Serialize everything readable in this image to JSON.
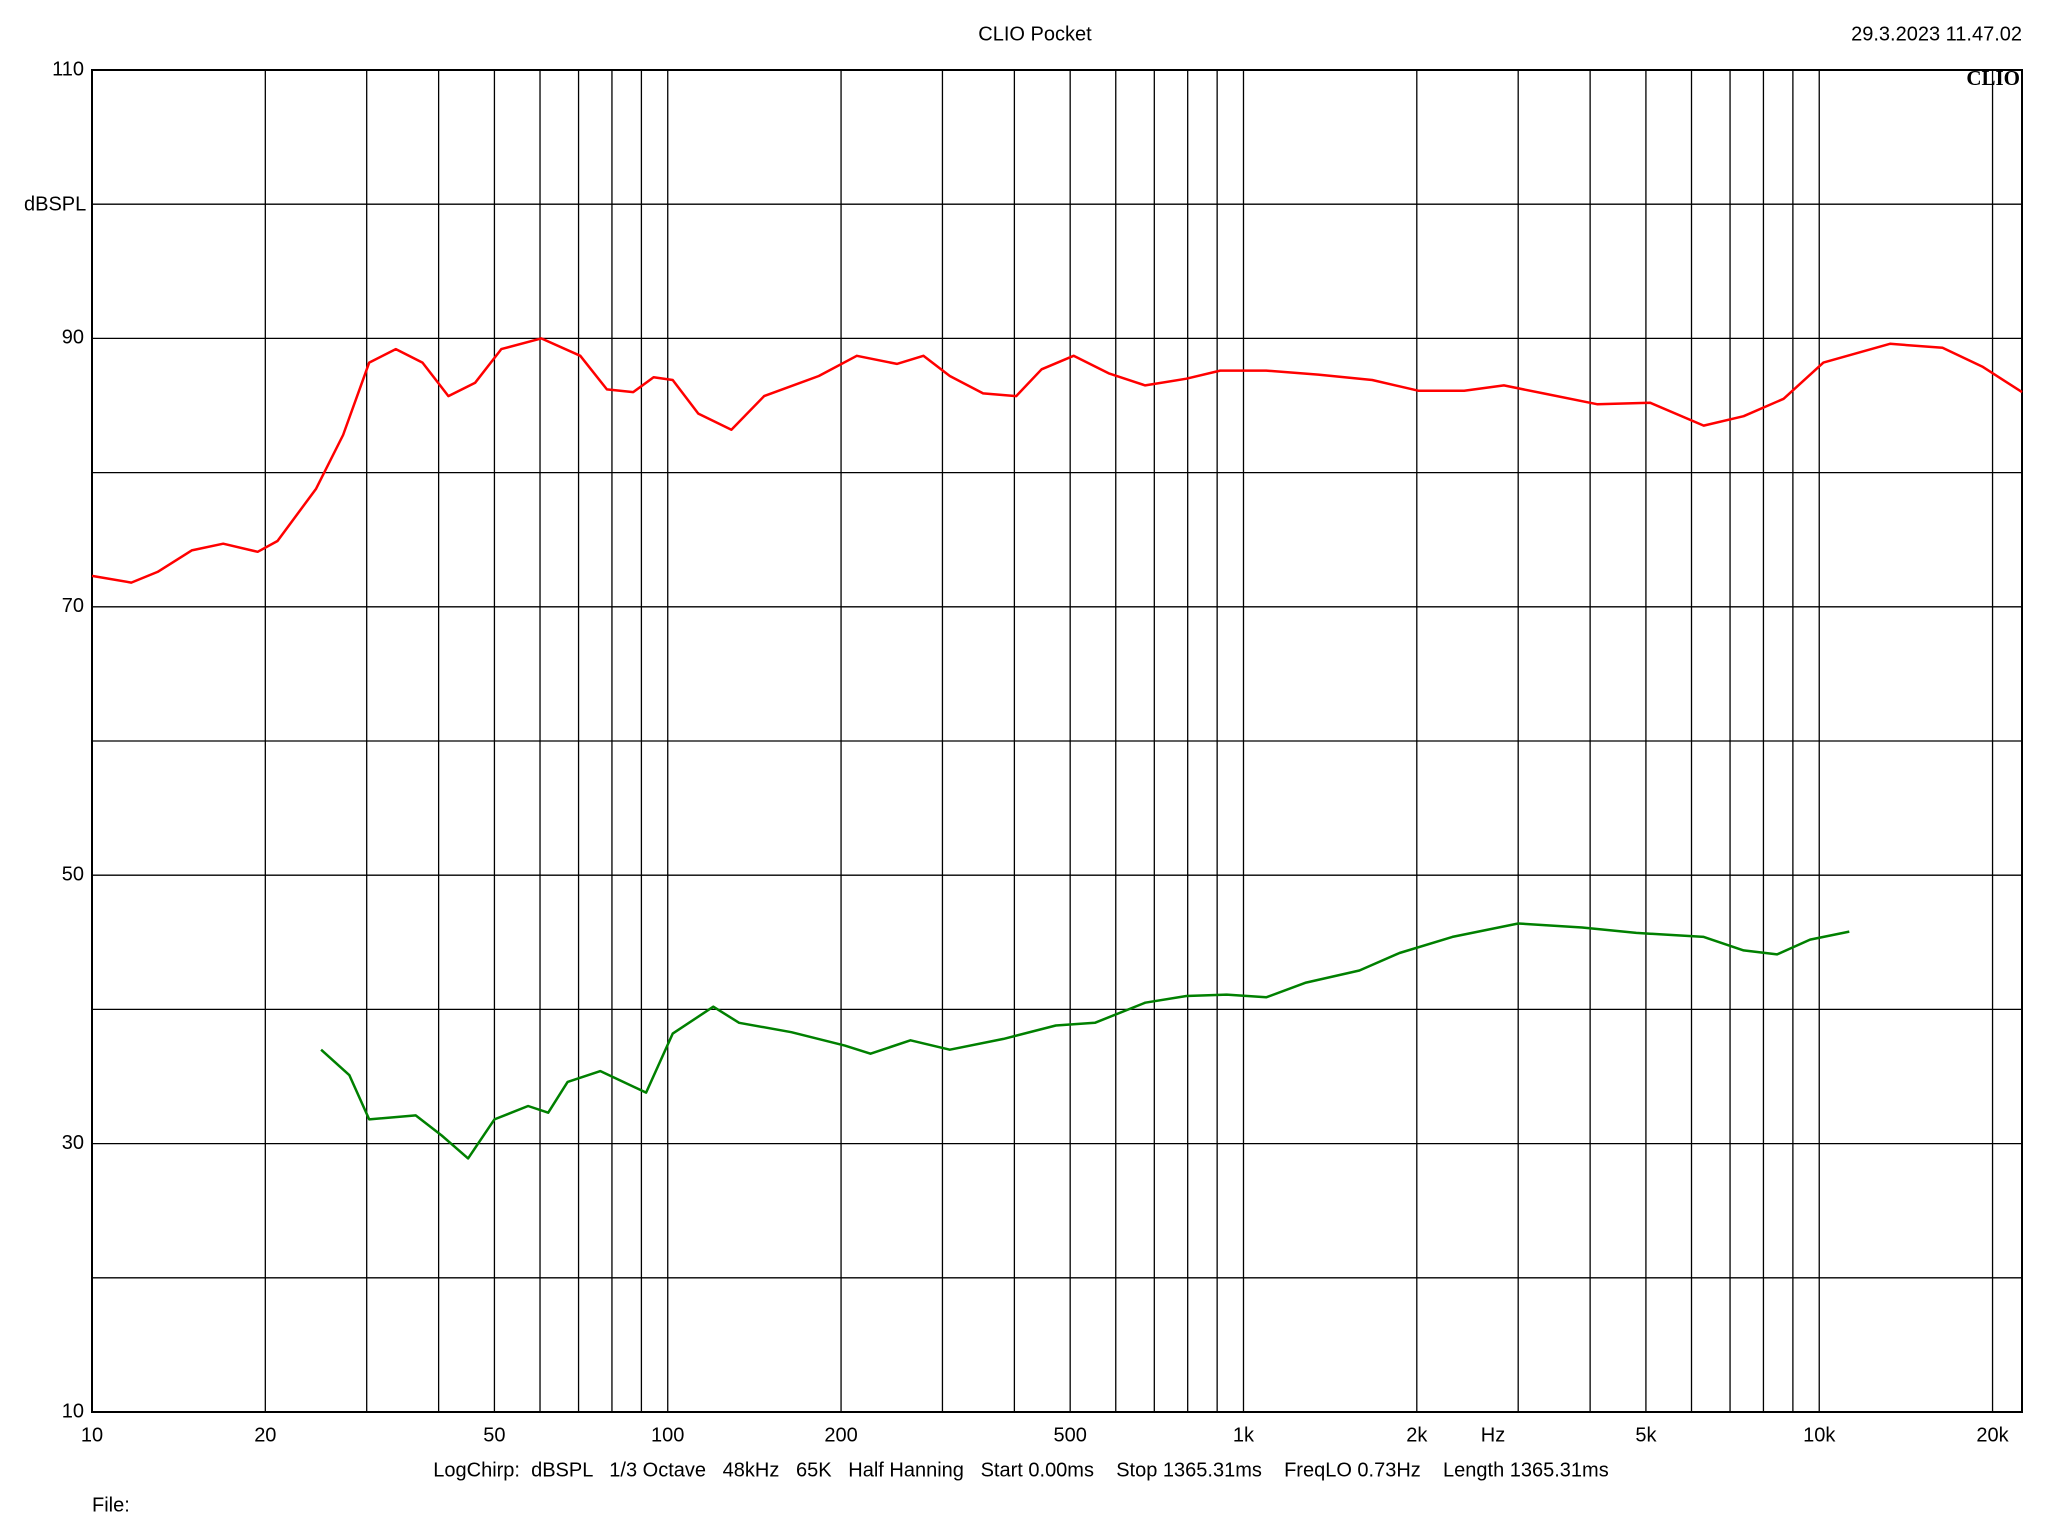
{
  "chart_data": {
    "type": "line",
    "title": "CLIO Pocket",
    "timestamp": "29.3.2023 11.47.02",
    "logo": "CLIO",
    "y_label": "dBSPL",
    "x_label": "Hz",
    "footer": "LogChirp:  dBSPL   1/3 Octave   48kHz   65K   Half Hanning   Start 0.00ms    Stop 1365.31ms    FreqLO 0.73Hz    Length 1365.31ms",
    "file_label": "File:",
    "x_log": true,
    "xlim": [
      10,
      22500
    ],
    "ylim": [
      10,
      110
    ],
    "xticks": [
      10,
      20,
      50,
      100,
      200,
      500,
      {
        "value": 1000,
        "label": "1k"
      },
      {
        "value": 2000,
        "label": "2k"
      },
      {
        "value": 5000,
        "label": "5k"
      },
      {
        "value": 10000,
        "label": "10k"
      },
      {
        "value": 20000,
        "label": "20k"
      }
    ],
    "yticks": [
      10,
      30,
      50,
      70,
      90,
      110
    ],
    "x_minor_gridlines": [
      30,
      40,
      60,
      70,
      80,
      90,
      300,
      400,
      600,
      700,
      800,
      900,
      3000,
      4000,
      6000,
      7000,
      8000,
      9000
    ],
    "y_minor_gridlines": [
      20,
      40,
      60,
      80,
      100
    ],
    "grid": true,
    "series": [
      {
        "name": "red",
        "color": "#ff0000",
        "x": [
          10,
          11.7,
          13,
          14.9,
          16.9,
          19.4,
          21,
          24.5,
          27.3,
          30.3,
          33.7,
          37.5,
          41.6,
          46.3,
          51.4,
          60.3,
          70.5,
          78.4,
          87.1,
          94.5,
          102,
          113,
          129,
          147,
          183,
          213,
          250,
          278,
          309,
          353,
          403,
          446,
          507,
          583,
          675,
          796,
          911,
          1095,
          1348,
          1673,
          2012,
          2417,
          2833,
          3318,
          4112,
          5088,
          6299,
          7390,
          8671,
          10170,
          13270,
          16370,
          19200,
          22500
        ],
        "values": [
          72.3,
          71.8,
          72.6,
          74.2,
          74.7,
          74.1,
          74.9,
          78.8,
          82.8,
          88.2,
          89.2,
          88.2,
          85.7,
          86.7,
          89.2,
          90.0,
          88.7,
          86.2,
          86.0,
          87.1,
          86.9,
          84.4,
          83.2,
          85.7,
          87.2,
          88.7,
          88.1,
          88.7,
          87.2,
          85.9,
          85.7,
          87.7,
          88.7,
          87.4,
          86.5,
          87.0,
          87.6,
          87.6,
          87.3,
          86.9,
          86.1,
          86.1,
          86.5,
          85.9,
          85.1,
          85.2,
          83.5,
          84.2,
          85.5,
          88.2,
          89.6,
          89.3,
          87.9,
          86.0
        ]
      },
      {
        "name": "green",
        "color": "#008000",
        "x": [
          25,
          28,
          30.3,
          36.5,
          40.5,
          45,
          50,
          57.2,
          62,
          67,
          76.4,
          91.7,
          102,
          120,
          133,
          164,
          203,
          225,
          264,
          309,
          383,
          472,
          552,
          675,
          796,
          935,
          1095,
          1284,
          1590,
          1866,
          2306,
          3000,
          3873,
          4811,
          6299,
          7390,
          8450,
          9640,
          11280
        ],
        "values": [
          37.0,
          35.1,
          31.8,
          32.1,
          30.6,
          28.9,
          31.8,
          32.8,
          32.3,
          34.6,
          35.4,
          33.8,
          38.2,
          40.2,
          39.0,
          38.3,
          37.3,
          36.7,
          37.7,
          37.0,
          37.8,
          38.8,
          39.0,
          40.5,
          41.0,
          41.1,
          40.9,
          42.0,
          42.9,
          44.2,
          45.4,
          46.4,
          46.1,
          45.7,
          45.4,
          44.4,
          44.1,
          45.2,
          45.8
        ]
      }
    ]
  }
}
